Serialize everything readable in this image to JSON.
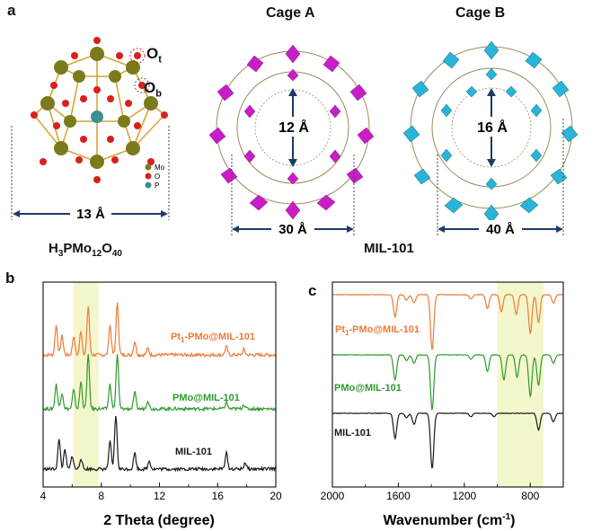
{
  "panels": {
    "a": {
      "letter": "a",
      "polyoxometalate": {
        "formula_parts": {
          "h": "H",
          "h_sub": "3",
          "pmo": "PMo",
          "pmo_sub": "12",
          "o": "O",
          "o_sub": "40"
        },
        "width_label": "13 Å",
        "atom_labels": {
          "ot_main": "O",
          "ot_sub": "t",
          "ob_main": "O",
          "ob_sub": "b"
        },
        "legend": [
          {
            "label": "Mo",
            "color": "#7b7a1c"
          },
          {
            "label": "O",
            "color": "#d8201c"
          },
          {
            "label": "P",
            "color": "#3f8f8f"
          }
        ]
      },
      "cage_a": {
        "title": "Cage A",
        "inner_label": "12 Å",
        "width_label": "30 Å",
        "color": "#c81ec8"
      },
      "cage_b": {
        "title": "Cage B",
        "inner_label": "16 Å",
        "width_label": "40 Å",
        "color": "#2ab4d8"
      },
      "mof_name": "MIL-101"
    },
    "b": {
      "letter": "b"
    },
    "c": {
      "letter": "c"
    }
  },
  "chart_data": [
    {
      "type": "line",
      "id": "b",
      "xlabel": "2 Theta (degree)",
      "ylabel": "",
      "xlim": [
        4,
        20
      ],
      "xticks": [
        4,
        8,
        12,
        16,
        20
      ],
      "highlight_band": [
        6.1,
        7.8
      ],
      "highlight_color": "#f4f6cc",
      "series": [
        {
          "name": "Pt1-PMo@MIL-101",
          "label_main": "Pt",
          "label_sub": "1",
          "label_rest": "-PMo@MIL-101",
          "color": "#ee7a38",
          "peaks": [
            [
              4.9,
              0.55
            ],
            [
              5.3,
              0.35
            ],
            [
              6.1,
              0.35
            ],
            [
              6.6,
              0.45
            ],
            [
              7.1,
              0.9
            ],
            [
              8.6,
              0.55
            ],
            [
              9.1,
              0.95
            ],
            [
              10.3,
              0.25
            ],
            [
              11.2,
              0.12
            ],
            [
              16.6,
              0.15
            ],
            [
              17.8,
              0.1
            ]
          ]
        },
        {
          "name": "PMo@MIL-101",
          "label_main": "PMo@MIL-101",
          "color": "#2e9a2e",
          "peaks": [
            [
              4.9,
              0.45
            ],
            [
              5.3,
              0.3
            ],
            [
              6.1,
              0.35
            ],
            [
              6.6,
              0.5
            ],
            [
              7.1,
              1.0
            ],
            [
              8.6,
              0.45
            ],
            [
              9.1,
              1.0
            ],
            [
              10.3,
              0.3
            ],
            [
              11.2,
              0.15
            ],
            [
              16.6,
              0.12
            ],
            [
              17.8,
              0.08
            ]
          ]
        },
        {
          "name": "MIL-101",
          "label_main": "MIL-101",
          "color": "#1a1a1a",
          "peaks": [
            [
              5.1,
              0.55
            ],
            [
              5.5,
              0.35
            ],
            [
              6.0,
              0.25
            ],
            [
              6.6,
              0.2
            ],
            [
              8.6,
              0.5
            ],
            [
              9.0,
              1.0
            ],
            [
              10.3,
              0.3
            ],
            [
              11.3,
              0.15
            ],
            [
              16.6,
              0.3
            ],
            [
              17.9,
              0.12
            ]
          ]
        }
      ]
    },
    {
      "type": "line",
      "id": "c",
      "xlabel_main": "Wavenumber (cm",
      "xlabel_sup": "-1",
      "xlabel_end": ")",
      "ylabel": "",
      "xlim": [
        2000,
        600
      ],
      "xticks": [
        2000,
        1600,
        1200,
        800
      ],
      "highlight_band": [
        1000,
        720
      ],
      "highlight_color": "#f4f6cc",
      "series": [
        {
          "name": "Pt1-PMo@MIL-101",
          "label_main": "Pt",
          "label_sub": "1",
          "label_rest": "-PMo@MIL-101",
          "color": "#ee7a38",
          "bands": [
            [
              1620,
              0.4
            ],
            [
              1550,
              0.1
            ],
            [
              1505,
              0.15
            ],
            [
              1395,
              1.0
            ],
            [
              1160,
              0.08
            ],
            [
              1060,
              0.25
            ],
            [
              975,
              0.3
            ],
            [
              885,
              0.35
            ],
            [
              800,
              0.7
            ],
            [
              750,
              0.5
            ],
            [
              660,
              0.15
            ]
          ]
        },
        {
          "name": "PMo@MIL-101",
          "label_main": "PMo@MIL-101",
          "color": "#2e9a2e",
          "bands": [
            [
              1620,
              0.45
            ],
            [
              1550,
              0.1
            ],
            [
              1505,
              0.15
            ],
            [
              1395,
              1.0
            ],
            [
              1160,
              0.08
            ],
            [
              1060,
              0.3
            ],
            [
              960,
              0.45
            ],
            [
              880,
              0.4
            ],
            [
              800,
              0.75
            ],
            [
              750,
              0.55
            ],
            [
              660,
              0.15
            ]
          ]
        },
        {
          "name": "MIL-101",
          "label_main": "MIL-101",
          "color": "#1a1a1a",
          "bands": [
            [
              1620,
              0.45
            ],
            [
              1550,
              0.08
            ],
            [
              1505,
              0.2
            ],
            [
              1395,
              1.0
            ],
            [
              1160,
              0.06
            ],
            [
              1020,
              0.06
            ],
            [
              750,
              0.3
            ],
            [
              660,
              0.15
            ]
          ]
        }
      ]
    }
  ]
}
